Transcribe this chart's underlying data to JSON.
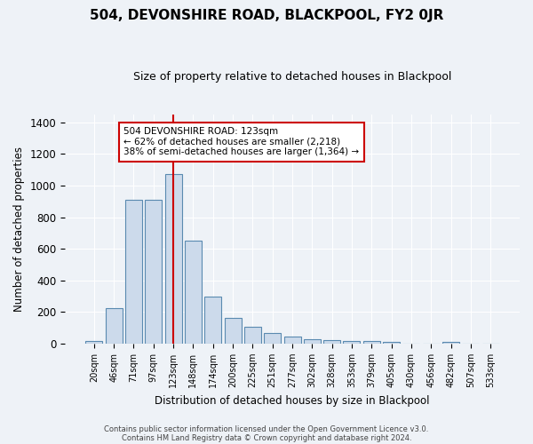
{
  "title": "504, DEVONSHIRE ROAD, BLACKPOOL, FY2 0JR",
  "subtitle": "Size of property relative to detached houses in Blackpool",
  "xlabel": "Distribution of detached houses by size in Blackpool",
  "ylabel": "Number of detached properties",
  "footnote1": "Contains HM Land Registry data © Crown copyright and database right 2024.",
  "footnote2": "Contains public sector information licensed under the Open Government Licence v3.0.",
  "categories": [
    "20sqm",
    "46sqm",
    "71sqm",
    "97sqm",
    "123sqm",
    "148sqm",
    "174sqm",
    "200sqm",
    "225sqm",
    "251sqm",
    "277sqm",
    "302sqm",
    "328sqm",
    "353sqm",
    "379sqm",
    "405sqm",
    "430sqm",
    "456sqm",
    "482sqm",
    "507sqm",
    "533sqm"
  ],
  "values": [
    15,
    225,
    912,
    912,
    1075,
    650,
    295,
    160,
    107,
    65,
    45,
    30,
    20,
    17,
    17,
    12,
    0,
    0,
    10,
    0,
    0
  ],
  "bar_color": "#ccdaeb",
  "bar_edge_color": "#5a8ab0",
  "marker_color": "#cc0000",
  "annotation_text": "504 DEVONSHIRE ROAD: 123sqm\n← 62% of detached houses are smaller (2,218)\n38% of semi-detached houses are larger (1,364) →",
  "annotation_box_color": "#ffffff",
  "annotation_box_edge": "#cc0000",
  "ylim": [
    0,
    1450
  ],
  "background_color": "#eef2f7",
  "grid_color": "#ffffff",
  "yticks": [
    0,
    200,
    400,
    600,
    800,
    1000,
    1200,
    1400
  ]
}
